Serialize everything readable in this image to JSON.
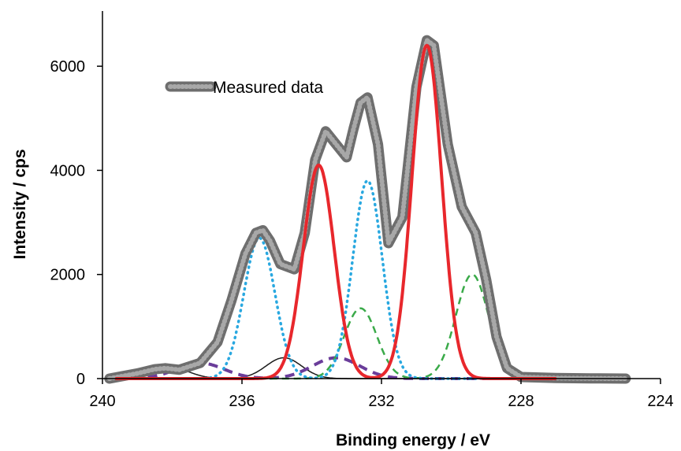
{
  "chart_data": {
    "type": "line",
    "title": "",
    "xlabel": "Binding energy / eV",
    "ylabel": "Intensity / cps",
    "xlim": [
      240,
      224
    ],
    "x_reversed": true,
    "ylim": [
      0,
      7000
    ],
    "xticks": [
      240,
      236,
      232,
      228,
      224
    ],
    "yticks": [
      0,
      2000,
      4000,
      6000
    ],
    "grid": false,
    "legend": {
      "position": "top-left",
      "entries": [
        "Measured data"
      ]
    },
    "colors": {
      "measured": "#6e6e6e",
      "red_component": "#e8272c",
      "blue_component": "#29a8e0",
      "green_component": "#3aaa49",
      "purple_component": "#6a3d9a",
      "black_component": "#1a1a1a"
    },
    "series": [
      {
        "name": "Measured data",
        "style": "thick-marker-line",
        "x": [
          239.8,
          239.0,
          238.5,
          238.2,
          237.8,
          237.2,
          236.7,
          236.3,
          235.9,
          235.6,
          235.4,
          235.2,
          234.9,
          234.5,
          234.2,
          233.9,
          233.6,
          233.3,
          233.0,
          232.8,
          232.6,
          232.4,
          232.1,
          231.8,
          231.4,
          231.0,
          230.7,
          230.5,
          230.1,
          229.7,
          229.3,
          229.0,
          228.7,
          228.4,
          228.0,
          227.0,
          226.0,
          225.0
        ],
        "y": [
          0,
          100,
          180,
          200,
          170,
          300,
          700,
          1500,
          2400,
          2800,
          2850,
          2650,
          2200,
          2100,
          2800,
          4200,
          4750,
          4500,
          4250,
          4800,
          5300,
          5400,
          4500,
          2600,
          3100,
          5600,
          6500,
          6400,
          4500,
          3300,
          2800,
          1900,
          800,
          200,
          30,
          10,
          5,
          0
        ]
      },
      {
        "name": "",
        "style": "solid",
        "color": "red_component",
        "peaks": [
          {
            "center": 233.8,
            "height": 4100,
            "fwhm": 1.05
          },
          {
            "center": 230.7,
            "height": 6400,
            "fwhm": 1.0
          }
        ]
      },
      {
        "name": "",
        "style": "dotted",
        "color": "blue_component",
        "peaks": [
          {
            "center": 235.5,
            "height": 2700,
            "fwhm": 1.05
          },
          {
            "center": 232.4,
            "height": 3800,
            "fwhm": 1.0
          }
        ]
      },
      {
        "name": "",
        "style": "dashed",
        "color": "green_component",
        "peaks": [
          {
            "center": 232.6,
            "height": 1350,
            "fwhm": 1.1
          },
          {
            "center": 229.4,
            "height": 2000,
            "fwhm": 1.1
          }
        ]
      },
      {
        "name": "",
        "style": "thick-dashed",
        "color": "purple_component",
        "peaks": [
          {
            "center": 237.2,
            "height": 300,
            "fwhm": 1.6
          },
          {
            "center": 233.3,
            "height": 400,
            "fwhm": 1.6
          }
        ]
      },
      {
        "name": "",
        "style": "thin-solid",
        "color": "black_component",
        "peaks": [
          {
            "center": 238.0,
            "height": 200,
            "fwhm": 1.2
          },
          {
            "center": 234.8,
            "height": 400,
            "fwhm": 1.2
          }
        ]
      }
    ]
  }
}
